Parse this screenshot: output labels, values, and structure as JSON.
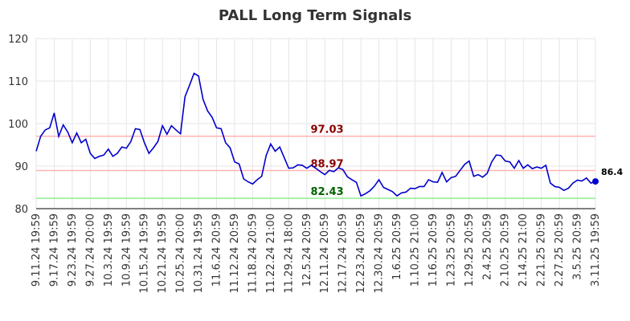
{
  "chart_data": {
    "type": "line",
    "title": "PALL Long Term Signals",
    "categories": [
      "9.11.24 19:59",
      null,
      null,
      null,
      "9.17.24 19:59",
      null,
      null,
      null,
      "9.23.24 19:59",
      null,
      null,
      null,
      "9.27.24 20:00",
      null,
      null,
      null,
      "10.3.24 19:59",
      null,
      null,
      null,
      "10.9.24 19:59",
      null,
      null,
      null,
      "10.15.24 19:59",
      null,
      null,
      null,
      "10.21.24 19:59",
      null,
      null,
      null,
      "10.25.24 20:00",
      null,
      null,
      null,
      "10.31.24 19:59",
      null,
      null,
      null,
      "11.6.24 20:59",
      null,
      null,
      null,
      "11.12.24 20:59",
      null,
      null,
      null,
      "11.18.24 20:59",
      null,
      null,
      null,
      "11.22.24 21:00",
      null,
      null,
      null,
      "11.29.24 18:00",
      null,
      null,
      null,
      "12.5.24 20:59",
      null,
      null,
      null,
      "12.11.24 20:59",
      null,
      null,
      null,
      "12.17.24 20:59",
      null,
      null,
      null,
      "12.23.24 20:59",
      null,
      null,
      null,
      "12.30.24 20:59",
      null,
      null,
      null,
      "1.6.25 20:59",
      null,
      null,
      null,
      "1.10.25 21:00",
      null,
      null,
      null,
      "1.16.25 20:59",
      null,
      null,
      null,
      "1.23.25 20:59",
      null,
      null,
      null,
      "1.29.25 20:59",
      null,
      null,
      null,
      "2.4.25 20:59",
      null,
      null,
      null,
      "2.10.25 20:59",
      null,
      null,
      null,
      "2.14.25 21:00",
      null,
      null,
      null,
      "2.21.25 20:59",
      null,
      null,
      null,
      "2.27.25 20:59",
      null,
      null,
      null,
      "3.5.25 20:59",
      null,
      null,
      null,
      "3.11.25 19:59"
    ],
    "series": [
      {
        "color": "#0000cc",
        "values": [
          93.5,
          97,
          98.5,
          99,
          102.5,
          97,
          99.7,
          98,
          95.5,
          97.8,
          95.5,
          96.3,
          93,
          91.8,
          92.3,
          92.6,
          94,
          92.3,
          93,
          94.5,
          94.2,
          95.8,
          98.8,
          98.6,
          95.5,
          93,
          94.3,
          95.8,
          99.5,
          97.5,
          99.5,
          98.5,
          97.6,
          106.3,
          109,
          111.8,
          111.2,
          105.7,
          103,
          101.5,
          99,
          98.8,
          95.5,
          94.3,
          91,
          90.5,
          87,
          86.3,
          85.8,
          86.8,
          87.6,
          92.5,
          95.2,
          93.5,
          94.5,
          92,
          89.5,
          89.6,
          90.3,
          90.2,
          89.5,
          90.2,
          89.5,
          88.7,
          88,
          89,
          88.7,
          89.6,
          89.2,
          87.5,
          86.8,
          86.2,
          83,
          83.5,
          84.2,
          85.3,
          86.8,
          85,
          84.5,
          84,
          83,
          83.7,
          83.9,
          84.8,
          84.7,
          85.2,
          85.2,
          86.8,
          86.3,
          86.2,
          88.5,
          86.3,
          87.3,
          87.6,
          89,
          90.4,
          91.2,
          87.6,
          88,
          87.4,
          88.3,
          91,
          92.6,
          92.5,
          91.2,
          91,
          89.5,
          91.3,
          89.5,
          90.3,
          89.4,
          89.8,
          89.5,
          90.2,
          86,
          85.2,
          85,
          84.3,
          84.8,
          86,
          86.7,
          86.5,
          87.2,
          86,
          86.4
        ]
      }
    ],
    "hlines": [
      {
        "value": 97.03,
        "color": "#ffb3b3",
        "label_color": "#8b0000"
      },
      {
        "value": 88.97,
        "color": "#ffb3b3",
        "label_color": "#8b0000"
      },
      {
        "value": 82.43,
        "color": "#90ee90",
        "label_color": "#006400"
      }
    ],
    "ylim": [
      80,
      120
    ],
    "yticks": [
      80,
      90,
      100,
      110,
      120
    ],
    "grid": true
  }
}
